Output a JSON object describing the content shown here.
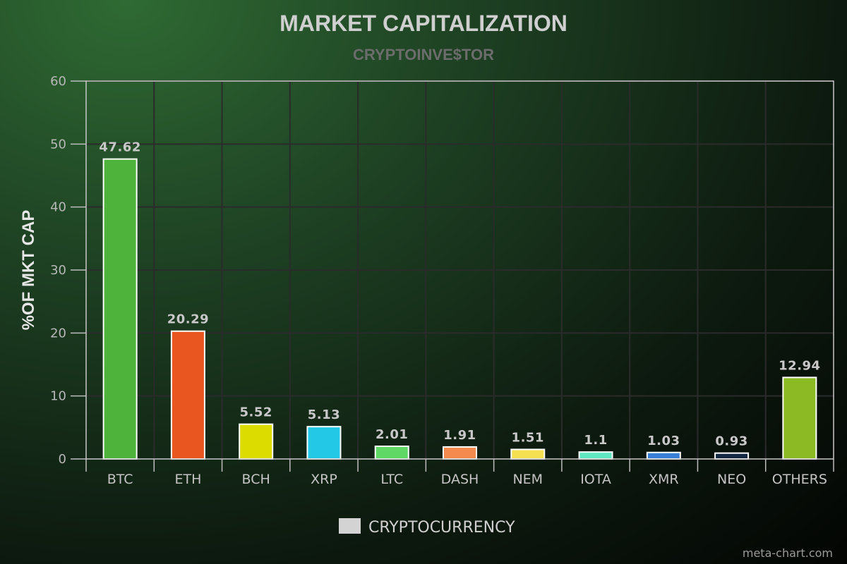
{
  "chart_data": {
    "type": "bar",
    "title": "MARKET CAPITALIZATION",
    "subtitle": "CRYPTOINVE$TOR",
    "xlabel": "",
    "ylabel": "%OF MKT CAP",
    "ylim": [
      0,
      60
    ],
    "yticks": [
      "0",
      "10",
      "20",
      "30",
      "40",
      "50",
      "60"
    ],
    "grid": true,
    "legend_position": "bottom-center",
    "categories": [
      "BTC",
      "ETH",
      "BCH",
      "XRP",
      "LTC",
      "DASH",
      "NEM",
      "IOTA",
      "XMR",
      "NEO",
      "OTHERS"
    ],
    "series": [
      {
        "name": "CRYPTOCURRENCY",
        "values": [
          47.62,
          20.29,
          5.52,
          5.13,
          2.01,
          1.91,
          1.51,
          1.1,
          1.03,
          0.93,
          12.94
        ],
        "labels": [
          "47.62",
          "20.29",
          "5.52",
          "5.13",
          "2.01",
          "1.91",
          "1.51",
          "1.1",
          "1.03",
          "0.93",
          "12.94"
        ]
      }
    ],
    "bar_colors": [
      "#4db33a",
      "#ea561f",
      "#dcdc00",
      "#23c8e6",
      "#5fd866",
      "#f58a4e",
      "#f5e052",
      "#5de8c2",
      "#3a7fd6",
      "#142844",
      "#8cba25"
    ],
    "legend_swatch_color": "#d3d3d3"
  },
  "credit": "meta-chart.com"
}
